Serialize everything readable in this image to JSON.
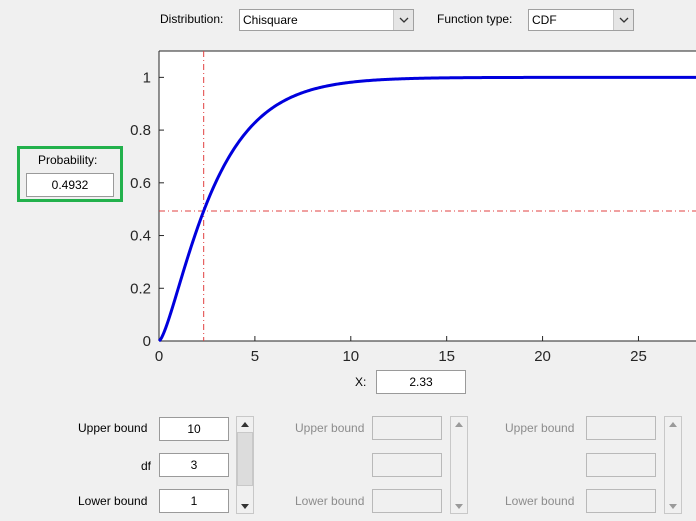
{
  "header": {
    "distribution_label": "Distribution:",
    "distribution_value": "Chisquare",
    "function_type_label": "Function type:",
    "function_type_value": "CDF"
  },
  "probability": {
    "label": "Probability:",
    "value": "0.4932"
  },
  "x_field": {
    "label": "X:",
    "value": "2.33"
  },
  "params": {
    "col1": {
      "upper_label": "Upper bound",
      "upper_value": "10",
      "mid_label": "df",
      "mid_value": "3",
      "lower_label": "Lower bound",
      "lower_value": "1"
    },
    "col2": {
      "upper_label": "Upper bound",
      "lower_label": "Lower bound"
    },
    "col3": {
      "upper_label": "Upper bound",
      "lower_label": "Lower bound"
    }
  },
  "colors": {
    "curve": "#0000dd",
    "crosshair": "#e04040",
    "highlight": "#22b14c"
  },
  "chart_data": {
    "type": "line",
    "xlim": [
      0,
      28
    ],
    "ylim": [
      0,
      1.1
    ],
    "xticks": [
      "0",
      "5",
      "10",
      "15",
      "20",
      "25"
    ],
    "yticks": [
      "0",
      "0.2",
      "0.4",
      "0.6",
      "0.8",
      "1"
    ],
    "series": [
      {
        "function": "chisquare_cdf",
        "df": 3
      }
    ],
    "crosshair": {
      "x": 2.33,
      "y": 0.4932
    }
  }
}
